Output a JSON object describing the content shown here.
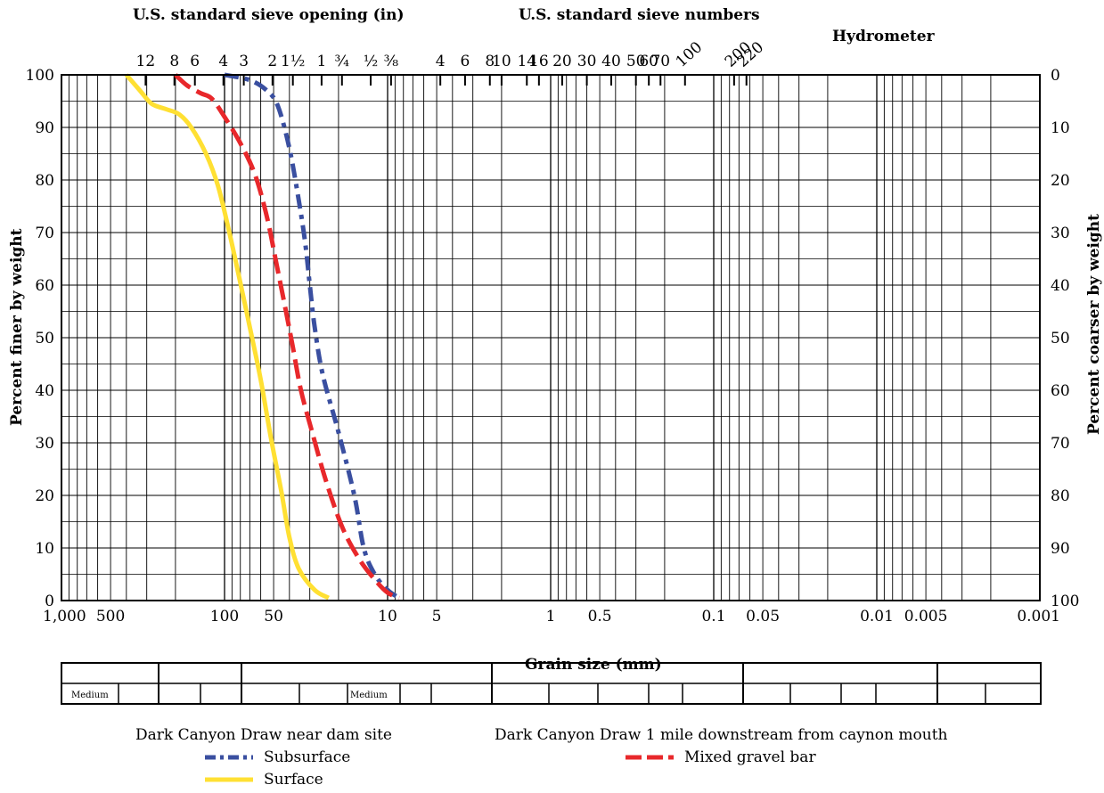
{
  "chart_data": {
    "type": "line",
    "header": {
      "sieve_opening_title": "U.S. standard sieve opening (in)",
      "sieve_numbers_title": "U.S. standard sieve numbers",
      "hydrometer_title": "Hydrometer"
    },
    "xlabel": "Grain size (mm)",
    "ylabel": "Percent finer by weight",
    "y2label": "Percent coarser by weight",
    "x_scale": "log",
    "x_reversed": true,
    "xlim": [
      1000,
      0.001
    ],
    "ylim": [
      0,
      100
    ],
    "grid": true,
    "x_tick_labels": [
      {
        "value": 1000,
        "label": "1,000"
      },
      {
        "value": 500,
        "label": "500"
      },
      {
        "value": 100,
        "label": "100"
      },
      {
        "value": 50,
        "label": "50"
      },
      {
        "value": 10,
        "label": "10"
      },
      {
        "value": 5,
        "label": "5"
      },
      {
        "value": 1,
        "label": "1"
      },
      {
        "value": 0.5,
        "label": "0.5"
      },
      {
        "value": 0.1,
        "label": "0.1"
      },
      {
        "value": 0.05,
        "label": "0.05"
      },
      {
        "value": 0.01,
        "label": "0.01"
      },
      {
        "value": 0.005,
        "label": "0.005"
      },
      {
        "value": 0.001,
        "label": "0.001"
      }
    ],
    "y_ticks": [
      0,
      10,
      20,
      30,
      40,
      50,
      60,
      70,
      80,
      90,
      100
    ],
    "y2_ticks": [
      100,
      90,
      80,
      70,
      60,
      50,
      40,
      30,
      20,
      10,
      0
    ],
    "sieve_opening_ticks": [
      {
        "mm": 305,
        "label": "12"
      },
      {
        "mm": 203,
        "label": "8"
      },
      {
        "mm": 152,
        "label": "6"
      },
      {
        "mm": 101.6,
        "label": "4"
      },
      {
        "mm": 76.2,
        "label": "3"
      },
      {
        "mm": 50.8,
        "label": "2"
      },
      {
        "mm": 38.1,
        "label": "1½"
      },
      {
        "mm": 25.4,
        "label": "1"
      },
      {
        "mm": 19.05,
        "label": "¾"
      },
      {
        "mm": 12.7,
        "label": "½"
      },
      {
        "mm": 9.525,
        "label": "⅜"
      }
    ],
    "sieve_number_ticks": [
      {
        "mm": 4.75,
        "label": "4"
      },
      {
        "mm": 3.35,
        "label": "6"
      },
      {
        "mm": 2.36,
        "label": "8"
      },
      {
        "mm": 2.0,
        "label": "10"
      },
      {
        "mm": 1.4,
        "label": "14"
      },
      {
        "mm": 1.18,
        "label": "16"
      },
      {
        "mm": 0.85,
        "label": "20"
      },
      {
        "mm": 0.6,
        "label": "30"
      },
      {
        "mm": 0.425,
        "label": "40"
      },
      {
        "mm": 0.3,
        "label": "50"
      },
      {
        "mm": 0.25,
        "label": "60"
      },
      {
        "mm": 0.212,
        "label": "70"
      },
      {
        "mm": 0.15,
        "label": "100"
      },
      {
        "mm": 0.075,
        "label": "200"
      },
      {
        "mm": 0.063,
        "label": "220"
      }
    ],
    "series": [
      {
        "name": "Subsurface",
        "location": "Dark Canyon Draw near dam site",
        "color": "#3a4fa0",
        "dash": "dashdot",
        "points": [
          [
            100,
            100
          ],
          [
            70,
            99
          ],
          [
            55,
            97
          ],
          [
            47,
            94
          ],
          [
            40,
            86
          ],
          [
            35,
            76
          ],
          [
            32,
            68
          ],
          [
            30,
            60
          ],
          [
            28,
            52
          ],
          [
            25,
            43
          ],
          [
            20,
            32
          ],
          [
            16,
            20
          ],
          [
            14,
            10
          ],
          [
            12,
            5
          ],
          [
            10,
            2
          ],
          [
            8.5,
            0.5
          ]
        ]
      },
      {
        "name": "Surface",
        "location": "Dark Canyon Draw near dam site",
        "color": "#ffe033",
        "dash": "solid",
        "points": [
          [
            400,
            100
          ],
          [
            330,
            97
          ],
          [
            280,
            94.5
          ],
          [
            230,
            93.5
          ],
          [
            190,
            92.5
          ],
          [
            160,
            90
          ],
          [
            130,
            85
          ],
          [
            110,
            79
          ],
          [
            95,
            71
          ],
          [
            82,
            62
          ],
          [
            70,
            52
          ],
          [
            60,
            42
          ],
          [
            52,
            31
          ],
          [
            45,
            21
          ],
          [
            40,
            12
          ],
          [
            35,
            6
          ],
          [
            28,
            2
          ],
          [
            23,
            0.5
          ]
        ]
      },
      {
        "name": "Mixed gravel bar",
        "location": "Dark Canyon Draw 1 mile downstream from caynon mouth",
        "color": "#e8282b",
        "dash": "dashed",
        "points": [
          [
            200,
            100
          ],
          [
            170,
            98
          ],
          [
            140,
            96.5
          ],
          [
            120,
            95.5
          ],
          [
            100,
            92
          ],
          [
            80,
            87
          ],
          [
            65,
            81
          ],
          [
            55,
            73
          ],
          [
            48,
            64
          ],
          [
            42,
            55
          ],
          [
            38,
            48
          ],
          [
            34,
            40
          ],
          [
            29,
            32
          ],
          [
            24,
            23
          ],
          [
            19,
            14
          ],
          [
            15,
            8
          ],
          [
            12,
            4
          ],
          [
            10,
            1.5
          ],
          [
            8.5,
            0.5
          ]
        ]
      }
    ]
  },
  "classification": {
    "cell_label_1": "Medium",
    "cell_label_2": "Medium"
  },
  "legend": {
    "location_1": "Dark Canyon Draw near dam site",
    "location_2": "Dark Canyon Draw 1 mile downstream from caynon mouth",
    "subsurface": "Subsurface",
    "surface": "Surface",
    "mixed": "Mixed gravel bar"
  }
}
